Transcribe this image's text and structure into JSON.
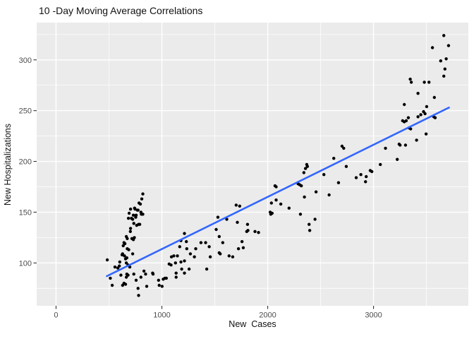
{
  "chart_data": {
    "type": "scatter",
    "title": "10 -Day Moving Average Correlations",
    "xlabel": "New  Cases",
    "ylabel": "New Hospitalizations",
    "xlim": [
      -183,
      3896
    ],
    "ylim": [
      57.8,
      336.7
    ],
    "x_major_ticks": [
      0,
      1000,
      2000,
      3000
    ],
    "x_minor_ticks": [
      500,
      1500,
      2500,
      3500
    ],
    "y_major_ticks": [
      100,
      150,
      200,
      250,
      300
    ],
    "y_minor_ticks": [
      75,
      125,
      175,
      225,
      275,
      325
    ],
    "grid": true,
    "legend_position": "none",
    "panel_color": "#EBEBEB",
    "grid_color": "#FFFFFF",
    "point_color": "#000000",
    "tick_label_color": "#4D4D4D",
    "tick_mark_color": "#333333",
    "trend_line": {
      "type": "linear",
      "color": "#3366FF",
      "x1": 480,
      "y1": 87,
      "x2": 3713,
      "y2": 253
    },
    "series": [
      {
        "name": "10-day moving averages",
        "points": [
          [
            484,
            103
          ],
          [
            513,
            85
          ],
          [
            531,
            78
          ],
          [
            557,
            96
          ],
          [
            584,
            95
          ],
          [
            598,
            97
          ],
          [
            602,
            101
          ],
          [
            613,
            88
          ],
          [
            624,
            108
          ],
          [
            629,
            78
          ],
          [
            629,
            109
          ],
          [
            635,
            117
          ],
          [
            642,
            80
          ],
          [
            642,
            120
          ],
          [
            647,
            107
          ],
          [
            651,
            119
          ],
          [
            657,
            79
          ],
          [
            657,
            104
          ],
          [
            664,
            86
          ],
          [
            664,
            100
          ],
          [
            664,
            126
          ],
          [
            669,
            89
          ],
          [
            669,
            105
          ],
          [
            673,
            114
          ],
          [
            673,
            124
          ],
          [
            680,
            88
          ],
          [
            680,
            98
          ],
          [
            684,
            144
          ],
          [
            687,
            113
          ],
          [
            691,
            149
          ],
          [
            697,
            96
          ],
          [
            702,
            131
          ],
          [
            704,
            134
          ],
          [
            704,
            153
          ],
          [
            713,
            144
          ],
          [
            717,
            124
          ],
          [
            724,
            109
          ],
          [
            724,
            143
          ],
          [
            731,
            123
          ],
          [
            731,
            147
          ],
          [
            735,
            89
          ],
          [
            735,
            139
          ],
          [
            740,
            125
          ],
          [
            742,
            154
          ],
          [
            747,
            153
          ],
          [
            753,
            145
          ],
          [
            757,
            83
          ],
          [
            757,
            147
          ],
          [
            762,
            137
          ],
          [
            769,
            152
          ],
          [
            775,
            75
          ],
          [
            775,
            152
          ],
          [
            780,
            68
          ],
          [
            780,
            138
          ],
          [
            784,
            159
          ],
          [
            791,
            138
          ],
          [
            797,
            158
          ],
          [
            802,
            86
          ],
          [
            802,
            150
          ],
          [
            806,
            148
          ],
          [
            810,
            163
          ],
          [
            820,
            148
          ],
          [
            820,
            168
          ],
          [
            831,
            92
          ],
          [
            846,
            89
          ],
          [
            857,
            77
          ],
          [
            913,
            90
          ],
          [
            917,
            89
          ],
          [
            969,
            83
          ],
          [
            975,
            78
          ],
          [
            1002,
            77
          ],
          [
            1013,
            84
          ],
          [
            1029,
            85
          ],
          [
            1042,
            85
          ],
          [
            1069,
            99
          ],
          [
            1087,
            98
          ],
          [
            1091,
            106
          ],
          [
            1113,
            107
          ],
          [
            1129,
            100
          ],
          [
            1135,
            86
          ],
          [
            1135,
            90
          ],
          [
            1147,
            107
          ],
          [
            1169,
            116
          ],
          [
            1180,
            101
          ],
          [
            1180,
            122
          ],
          [
            1187,
            94
          ],
          [
            1213,
            90
          ],
          [
            1213,
            102
          ],
          [
            1213,
            129
          ],
          [
            1231,
            121
          ],
          [
            1235,
            114
          ],
          [
            1257,
            94
          ],
          [
            1269,
            109
          ],
          [
            1307,
            106
          ],
          [
            1320,
            114
          ],
          [
            1369,
            120
          ],
          [
            1413,
            120
          ],
          [
            1424,
            94
          ],
          [
            1447,
            116
          ],
          [
            1457,
            106
          ],
          [
            1513,
            133
          ],
          [
            1529,
            145
          ],
          [
            1542,
            110
          ],
          [
            1542,
            126
          ],
          [
            1551,
            109
          ],
          [
            1575,
            120
          ],
          [
            1613,
            143
          ],
          [
            1635,
            107
          ],
          [
            1669,
            106
          ],
          [
            1702,
            157
          ],
          [
            1713,
            140
          ],
          [
            1724,
            114
          ],
          [
            1735,
            156
          ],
          [
            1757,
            121
          ],
          [
            1769,
            115
          ],
          [
            1802,
            131
          ],
          [
            1809,
            138
          ],
          [
            1813,
            132
          ],
          [
            1880,
            131
          ],
          [
            1913,
            130
          ],
          [
            2024,
            150
          ],
          [
            2029,
            148
          ],
          [
            2035,
            159
          ],
          [
            2042,
            149
          ],
          [
            2069,
            176
          ],
          [
            2080,
            162
          ],
          [
            2080,
            175
          ],
          [
            2124,
            158
          ],
          [
            2202,
            154
          ],
          [
            2287,
            178
          ],
          [
            2302,
            177
          ],
          [
            2309,
            148
          ],
          [
            2318,
            176
          ],
          [
            2342,
            189
          ],
          [
            2347,
            165
          ],
          [
            2357,
            193
          ],
          [
            2369,
            197
          ],
          [
            2375,
            195
          ],
          [
            2391,
            138
          ],
          [
            2397,
            132
          ],
          [
            2447,
            143
          ],
          [
            2457,
            170
          ],
          [
            2531,
            187
          ],
          [
            2580,
            167
          ],
          [
            2624,
            203
          ],
          [
            2669,
            179
          ],
          [
            2702,
            215
          ],
          [
            2718,
            213
          ],
          [
            2742,
            195
          ],
          [
            2836,
            184
          ],
          [
            2880,
            187
          ],
          [
            2924,
            180
          ],
          [
            2931,
            185
          ],
          [
            2969,
            191
          ],
          [
            2984,
            190
          ],
          [
            3064,
            197
          ],
          [
            3113,
            213
          ],
          [
            3224,
            202
          ],
          [
            3242,
            217
          ],
          [
            3251,
            216
          ],
          [
            3275,
            240
          ],
          [
            3291,
            239
          ],
          [
            3291,
            256
          ],
          [
            3302,
            216
          ],
          [
            3309,
            240
          ],
          [
            3329,
            243
          ],
          [
            3335,
            233
          ],
          [
            3347,
            281
          ],
          [
            3351,
            232
          ],
          [
            3357,
            278
          ],
          [
            3407,
            221
          ],
          [
            3420,
            244
          ],
          [
            3420,
            267
          ],
          [
            3447,
            246
          ],
          [
            3473,
            249
          ],
          [
            3480,
            278
          ],
          [
            3487,
            247
          ],
          [
            3497,
            227
          ],
          [
            3502,
            254
          ],
          [
            3524,
            278
          ],
          [
            3557,
            312
          ],
          [
            3569,
            244
          ],
          [
            3575,
            263
          ],
          [
            3582,
            243
          ],
          [
            3635,
            299
          ],
          [
            3664,
            284
          ],
          [
            3664,
            324
          ],
          [
            3675,
            291
          ],
          [
            3687,
            301
          ],
          [
            3709,
            314
          ]
        ]
      }
    ]
  }
}
